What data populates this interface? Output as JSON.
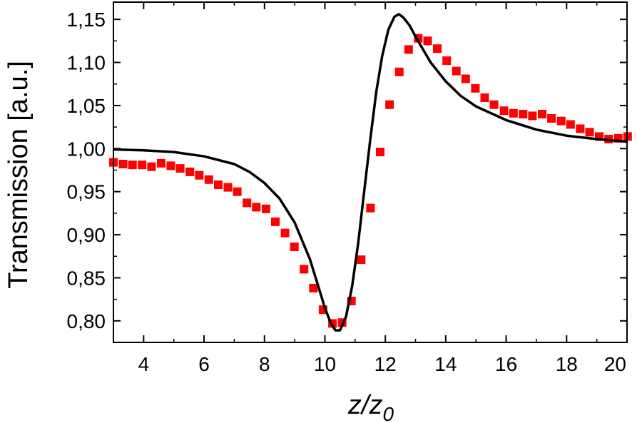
{
  "chart_data": {
    "type": "scatter",
    "xlabel": "z/z",
    "xlabel_sub": "0",
    "ylabel": "Transmission [a.u.]",
    "xlim": [
      3,
      20
    ],
    "ylim": [
      0.775,
      1.17
    ],
    "grid": false,
    "xticks": [
      {
        "v": 4,
        "label": "4"
      },
      {
        "v": 6,
        "label": "6"
      },
      {
        "v": 8,
        "label": "8"
      },
      {
        "v": 10,
        "label": "10"
      },
      {
        "v": 12,
        "label": "12"
      },
      {
        "v": 14,
        "label": "14"
      },
      {
        "v": 16,
        "label": "16"
      },
      {
        "v": 18,
        "label": "18"
      },
      {
        "v": 20,
        "label": "20"
      }
    ],
    "yticks": [
      {
        "v": 0.8,
        "label": "0,80"
      },
      {
        "v": 0.85,
        "label": "0,85"
      },
      {
        "v": 0.9,
        "label": "0,90"
      },
      {
        "v": 0.95,
        "label": "0,95"
      },
      {
        "v": 1.0,
        "label": "1,00"
      },
      {
        "v": 1.05,
        "label": "1,05"
      },
      {
        "v": 1.1,
        "label": "1,10"
      },
      {
        "v": 1.15,
        "label": "1,15"
      }
    ],
    "series": [
      {
        "style": "markers",
        "marker": "square",
        "color": "#ff0000",
        "points": [
          [
            3.0,
            0.984
          ],
          [
            3.32,
            0.982
          ],
          [
            3.63,
            0.981
          ],
          [
            3.95,
            0.981
          ],
          [
            4.26,
            0.979
          ],
          [
            4.58,
            0.983
          ],
          [
            4.9,
            0.98
          ],
          [
            5.21,
            0.977
          ],
          [
            5.53,
            0.973
          ],
          [
            5.84,
            0.969
          ],
          [
            6.16,
            0.964
          ],
          [
            6.47,
            0.958
          ],
          [
            6.79,
            0.955
          ],
          [
            7.1,
            0.95
          ],
          [
            7.42,
            0.937
          ],
          [
            7.73,
            0.932
          ],
          [
            8.05,
            0.93
          ],
          [
            8.36,
            0.915
          ],
          [
            8.68,
            0.902
          ],
          [
            8.99,
            0.886
          ],
          [
            9.31,
            0.86
          ],
          [
            9.62,
            0.838
          ],
          [
            9.94,
            0.813
          ],
          [
            10.25,
            0.797
          ],
          [
            10.57,
            0.798
          ],
          [
            10.88,
            0.823
          ],
          [
            11.2,
            0.871
          ],
          [
            11.51,
            0.931
          ],
          [
            11.83,
            0.996
          ],
          [
            12.14,
            1.051
          ],
          [
            12.46,
            1.089
          ],
          [
            12.77,
            1.115
          ],
          [
            13.09,
            1.128
          ],
          [
            13.4,
            1.125
          ],
          [
            13.72,
            1.116
          ],
          [
            14.03,
            1.102
          ],
          [
            14.35,
            1.09
          ],
          [
            14.66,
            1.081
          ],
          [
            14.98,
            1.07
          ],
          [
            15.29,
            1.059
          ],
          [
            15.6,
            1.051
          ],
          [
            15.93,
            1.044
          ],
          [
            16.24,
            1.041
          ],
          [
            16.56,
            1.04
          ],
          [
            16.87,
            1.038
          ],
          [
            17.19,
            1.04
          ],
          [
            17.5,
            1.035
          ],
          [
            17.82,
            1.032
          ],
          [
            18.13,
            1.028
          ],
          [
            18.45,
            1.023
          ],
          [
            18.76,
            1.019
          ],
          [
            19.08,
            1.014
          ],
          [
            19.39,
            1.011
          ],
          [
            19.71,
            1.012
          ],
          [
            20.02,
            1.014
          ]
        ]
      },
      {
        "style": "line",
        "color": "#000000",
        "points": [
          [
            3.0,
            0.999
          ],
          [
            4.0,
            0.998
          ],
          [
            5.0,
            0.996
          ],
          [
            6.0,
            0.991
          ],
          [
            7.0,
            0.982
          ],
          [
            7.5,
            0.973
          ],
          [
            8.0,
            0.96
          ],
          [
            8.5,
            0.942
          ],
          [
            9.0,
            0.914
          ],
          [
            9.5,
            0.872
          ],
          [
            9.8,
            0.838
          ],
          [
            10.0,
            0.815
          ],
          [
            10.2,
            0.797
          ],
          [
            10.35,
            0.789
          ],
          [
            10.5,
            0.789
          ],
          [
            10.7,
            0.805
          ],
          [
            10.9,
            0.84
          ],
          [
            11.1,
            0.89
          ],
          [
            11.3,
            0.95
          ],
          [
            11.5,
            1.01
          ],
          [
            11.7,
            1.066
          ],
          [
            11.9,
            1.108
          ],
          [
            12.1,
            1.138
          ],
          [
            12.3,
            1.153
          ],
          [
            12.45,
            1.156
          ],
          [
            12.6,
            1.152
          ],
          [
            12.8,
            1.143
          ],
          [
            13.0,
            1.13
          ],
          [
            13.5,
            1.1
          ],
          [
            14.0,
            1.078
          ],
          [
            14.5,
            1.061
          ],
          [
            15.0,
            1.049
          ],
          [
            16.0,
            1.033
          ],
          [
            17.0,
            1.022
          ],
          [
            18.0,
            1.015
          ],
          [
            19.0,
            1.011
          ],
          [
            20.0,
            1.008
          ]
        ]
      }
    ]
  }
}
